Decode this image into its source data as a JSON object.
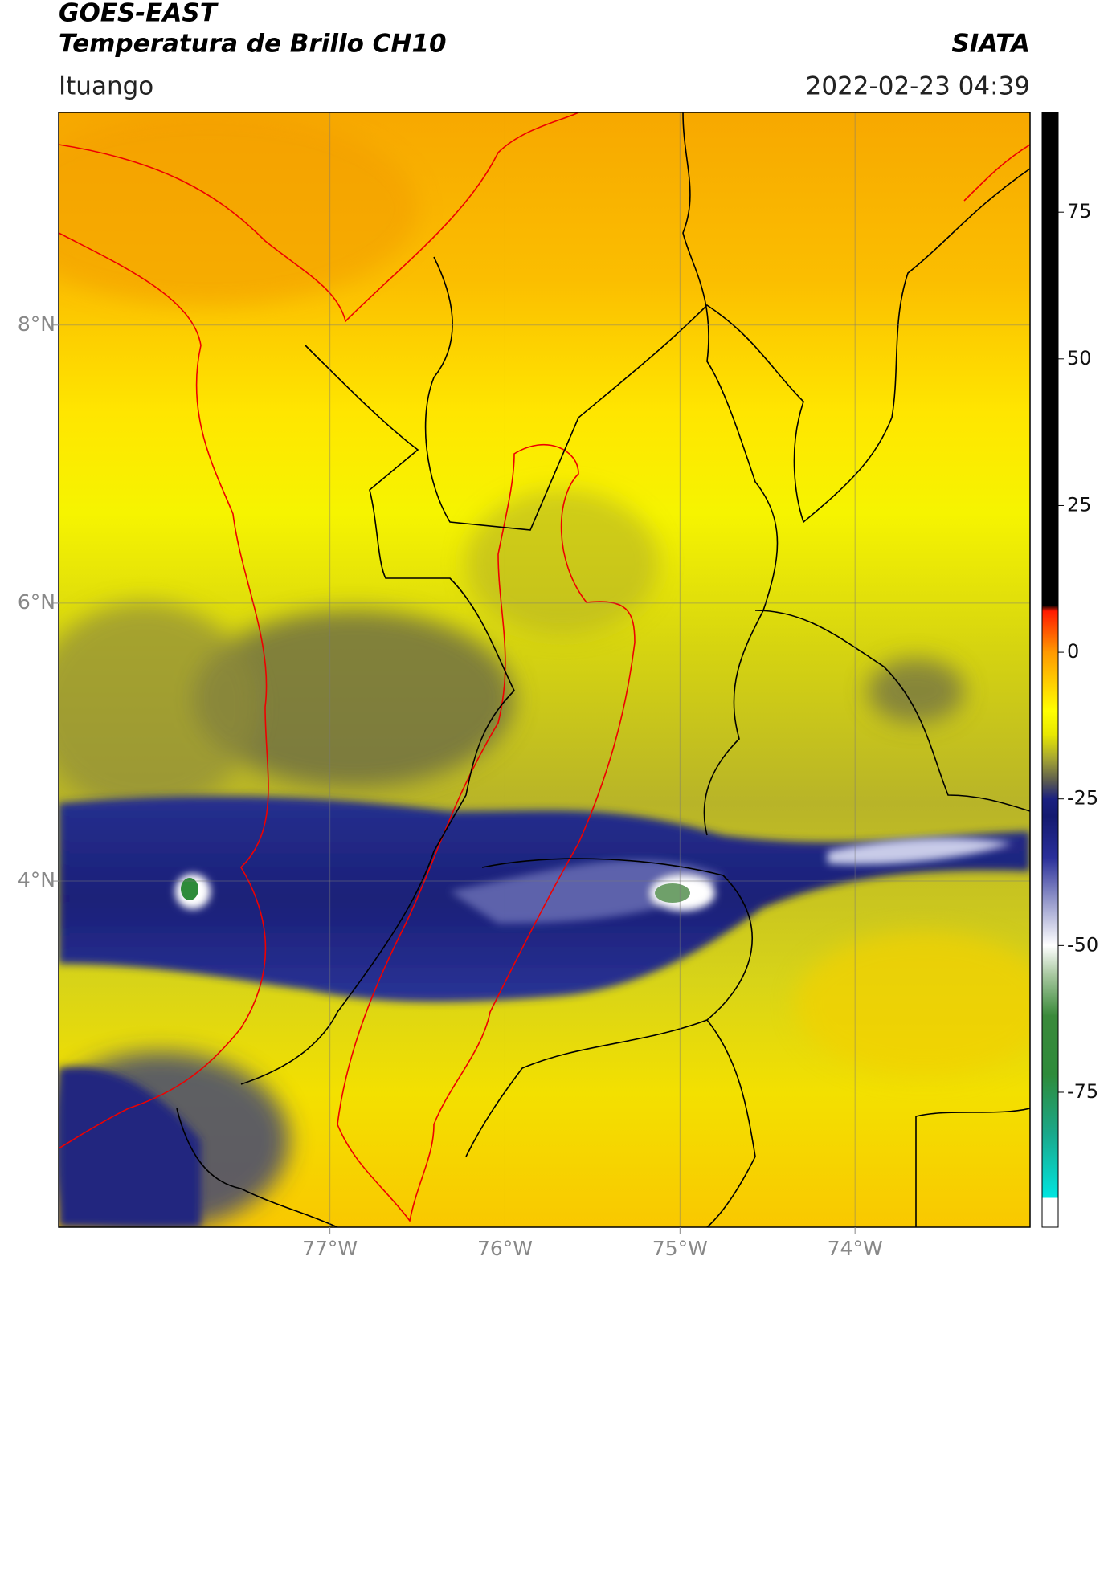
{
  "header": {
    "satellite": "GOES-EAST",
    "product": "Temperatura de Brillo CH10",
    "organization": "SIATA",
    "region": "Ituango",
    "datetime": "2022-02-23 04:39"
  },
  "chart_data": {
    "type": "map",
    "xlim": [
      -78.55,
      -73.0
    ],
    "ylim": [
      1.51,
      9.53
    ],
    "xticks": [
      {
        "value": -77,
        "label": "77°W"
      },
      {
        "value": -76,
        "label": "76°W"
      },
      {
        "value": -75,
        "label": "75°W"
      },
      {
        "value": -74,
        "label": "74°W"
      }
    ],
    "yticks": [
      {
        "value": 4,
        "label": "4°N"
      },
      {
        "value": 6,
        "label": "6°N"
      },
      {
        "value": 8,
        "label": "8°N"
      }
    ],
    "grid": true,
    "colorbar": {
      "lim": [
        -98,
        92
      ],
      "ticks": [
        -75,
        -50,
        -25,
        0,
        25,
        50,
        75
      ],
      "stops": [
        {
          "value": 92,
          "color": "#000000"
        },
        {
          "value": 8,
          "color": "#000000"
        },
        {
          "value": 7,
          "color": "#ff1a00"
        },
        {
          "value": 0,
          "color": "#ff9900"
        },
        {
          "value": -5,
          "color": "#ffcc00"
        },
        {
          "value": -10,
          "color": "#ffff00"
        },
        {
          "value": -14,
          "color": "#e8e800"
        },
        {
          "value": -18,
          "color": "#a8a830"
        },
        {
          "value": -22,
          "color": "#5a5a50"
        },
        {
          "value": -25,
          "color": "#1b2080"
        },
        {
          "value": -28,
          "color": "#141a70"
        },
        {
          "value": -35,
          "color": "#2a2f9a"
        },
        {
          "value": -42,
          "color": "#8f93c8"
        },
        {
          "value": -50,
          "color": "#ffffff"
        },
        {
          "value": -55,
          "color": "#a8c8a0"
        },
        {
          "value": -62,
          "color": "#3a8a3a"
        },
        {
          "value": -72,
          "color": "#2e8b3a"
        },
        {
          "value": -82,
          "color": "#1aa88a"
        },
        {
          "value": -93,
          "color": "#00e5e0"
        },
        {
          "value": -93.01,
          "color": "#ffffff"
        },
        {
          "value": -98,
          "color": "#ffffff"
        }
      ]
    }
  }
}
